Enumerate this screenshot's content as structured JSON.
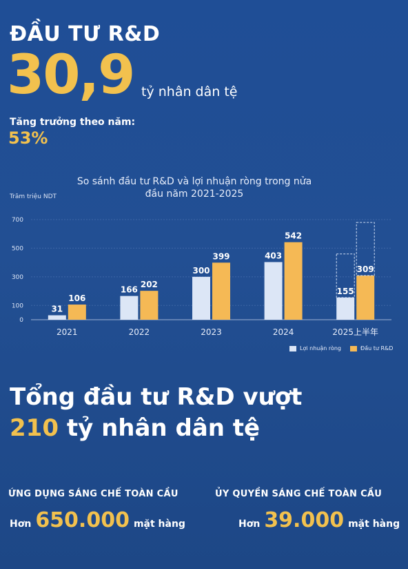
{
  "header": {
    "title": "ĐẦU TƯ R&D",
    "amount": "30,9",
    "amount_unit": "tỷ nhân dân tệ",
    "growth_label": "Tăng trưởng theo năm:",
    "growth_value": "53%"
  },
  "chart_data": {
    "type": "bar",
    "title": "So sánh đầu tư R&D và lợi nhuận ròng trong nửa đầu năm 2021-2025",
    "ylabel": "Trăm triệu NDT",
    "categories": [
      "2021",
      "2022",
      "2023",
      "2024",
      "2025上半年"
    ],
    "yticks": [
      0,
      100,
      300,
      500,
      700
    ],
    "ylim": [
      0,
      700
    ],
    "series": [
      {
        "name": "Lợi nhuận ròng",
        "values": [
          31,
          166,
          300,
          403,
          155
        ],
        "color": "#dce6f6"
      },
      {
        "name": "Đầu tư R&D",
        "values": [
          106,
          202,
          399,
          542,
          309
        ],
        "color": "#f5b955"
      }
    ],
    "grid": true,
    "legend": "bottom-right"
  },
  "summary": {
    "line1": "Tổng đầu tư R&D vượt",
    "line2_highlight": "210",
    "line2_rest": "tỷ nhân dân tệ"
  },
  "stats": [
    {
      "label": "ỨNG DỤNG SÁNG CHẾ TOÀN CẦU",
      "prefix": "Hơn",
      "value": "650.000",
      "suffix": "mặt hàng"
    },
    {
      "label": "ỦY QUYỀN SÁNG CHẾ TOÀN CẦU",
      "prefix": "Hơn",
      "value": "39.000",
      "suffix": "mặt hàng"
    }
  ]
}
